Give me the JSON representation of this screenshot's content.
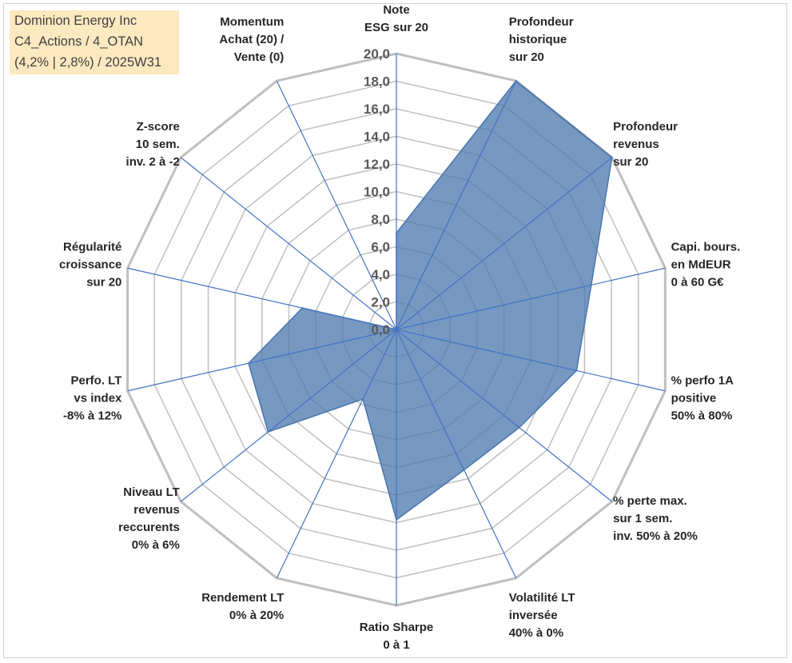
{
  "info_box": {
    "line1": "Dominion Energy Inc",
    "line2": "C4_Actions / 4_OTAN",
    "line3": "(4,2% | 2,8%) / 2025W31"
  },
  "chart_data": {
    "type": "radar",
    "title": "",
    "rlim": [
      0,
      20
    ],
    "r_ticks": [
      "0,0",
      "2,0",
      "4,0",
      "6,0",
      "8,0",
      "10,0",
      "12,0",
      "14,0",
      "16,0",
      "18,0",
      "20,0"
    ],
    "grid": true,
    "fill_color": "#4f7bb0",
    "axis_color": "#4472c4",
    "grid_color": "#bfbfbf",
    "categories": [
      [
        "Note",
        "ESG sur 20"
      ],
      [
        "Profondeur",
        "historique",
        "sur 20"
      ],
      [
        "Profondeur",
        "revenus",
        "sur 20"
      ],
      [
        "Capi. bours.",
        "en MdEUR",
        "0 à 60 G€"
      ],
      [
        "% perfo 1A",
        "positive",
        "50% à 80%"
      ],
      [
        "% perte max.",
        "sur 1 sem.",
        "inv. 50% à 20%"
      ],
      [
        "Volatilité LT",
        "inversée",
        "40% à 0%"
      ],
      [
        "Ratio Sharpe",
        "0 à 1"
      ],
      [
        "Rendement LT",
        "0% à 20%"
      ],
      [
        "Niveau LT",
        "revenus",
        "reccurents",
        "0% à 6%"
      ],
      [
        "Perfo. LT",
        "vs index",
        "-8% à 12%"
      ],
      [
        "Régularité",
        "croissance",
        "sur 20"
      ],
      [
        "Z-score",
        "10 sem.",
        "inv. 2 à -2"
      ],
      [
        "Momentum",
        "Achat (20) /",
        "Vente (0)"
      ]
    ],
    "series": [
      {
        "values": [
          7.0,
          20.0,
          20.0,
          14.5,
          13.4,
          11.4,
          11.3,
          13.8,
          5.6,
          11.9,
          11.0,
          7.0,
          0.0,
          0.0
        ]
      }
    ]
  }
}
